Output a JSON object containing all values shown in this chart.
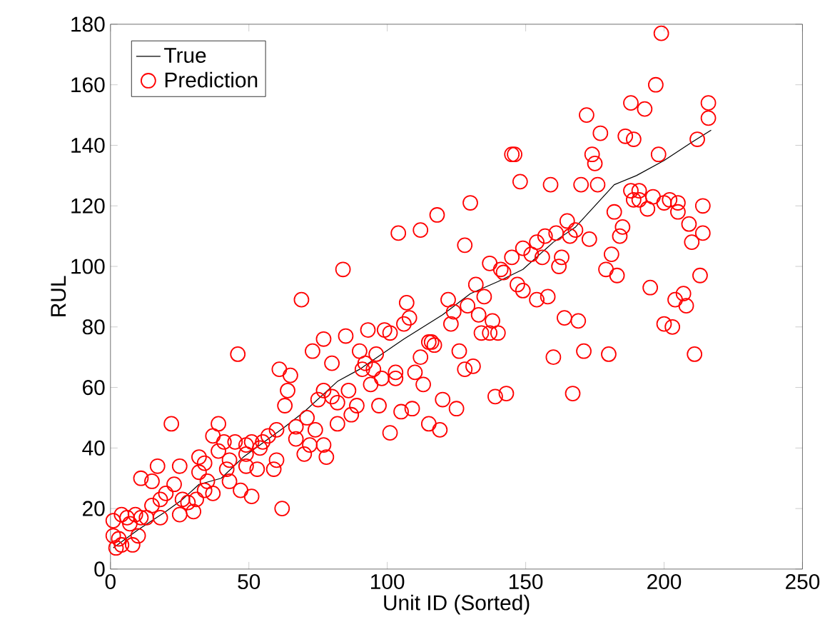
{
  "chart_data": {
    "type": "scatter",
    "xlabel": "Unit ID (Sorted)",
    "ylabel": "RUL",
    "xlim": [
      0,
      250
    ],
    "ylim": [
      0,
      180
    ],
    "xticks": [
      0,
      50,
      100,
      150,
      200,
      250
    ],
    "yticks": [
      0,
      20,
      40,
      60,
      80,
      100,
      120,
      140,
      160,
      180
    ],
    "legend": "top left",
    "series": [
      {
        "name": "True",
        "type": "line",
        "color": "#000000",
        "marker": "none",
        "line_style": "solid",
        "x": [
          1,
          10,
          20,
          26,
          32,
          40,
          48,
          63,
          70,
          82,
          90,
          106,
          120,
          130,
          140,
          149,
          160,
          168,
          182,
          190,
          200,
          210,
          217
        ],
        "values": [
          7,
          13,
          19,
          23,
          28,
          30,
          37,
          47,
          52,
          62,
          66,
          76,
          84,
          91,
          95,
          99,
          108,
          113,
          127,
          130,
          135,
          141,
          145
        ]
      },
      {
        "name": "Prediction",
        "color": "#ff0000",
        "marker": "circle",
        "x": [
          46,
          77,
          73,
          80,
          61,
          65,
          64,
          63,
          77,
          75,
          80,
          82,
          82,
          71,
          74,
          67,
          67,
          72,
          77,
          70,
          78,
          22,
          39,
          37,
          41,
          45,
          39,
          49,
          51,
          54,
          55,
          57,
          60,
          49,
          43,
          42,
          49,
          53,
          60,
          59,
          43,
          47,
          51,
          32,
          34,
          32,
          25,
          17,
          11,
          15,
          35,
          23,
          34,
          37,
          31,
          20,
          18,
          26,
          28,
          25,
          30,
          18,
          13,
          15,
          11,
          9,
          6,
          4,
          1,
          1,
          3,
          7,
          10,
          8,
          4,
          2,
          62,
          118,
          130,
          104,
          112,
          128,
          84,
          69,
          137,
          141,
          142,
          145,
          149,
          147,
          149,
          132,
          135,
          122,
          107,
          108,
          106,
          124,
          129,
          133,
          138,
          123,
          93,
          99,
          101,
          85,
          90,
          96,
          92,
          95,
          91,
          103,
          110,
          112,
          115,
          116,
          117,
          126,
          128,
          131,
          134,
          137,
          140,
          139,
          143,
          120,
          125,
          98,
          103,
          94,
          113,
          86,
          97,
          109,
          105,
          89,
          87,
          101,
          115,
          119,
          172,
          216,
          177,
          186,
          189,
          212,
          145,
          146,
          148,
          159,
          170,
          176,
          174,
          175,
          198,
          188,
          191,
          189,
          191,
          194,
          196,
          200,
          202,
          205,
          205,
          214,
          209,
          182,
          185,
          184,
          165,
          168,
          166,
          173,
          161,
          157,
          154,
          152,
          156,
          181,
          179,
          183,
          163,
          162,
          210,
          214,
          213,
          195,
          204,
          207,
          208,
          200,
          203,
          164,
          169,
          160,
          171,
          180,
          211,
          167,
          158,
          154,
          199,
          197,
          188,
          193,
          216
        ],
        "values": [
          71,
          76,
          72,
          68,
          66,
          64,
          59,
          54,
          59,
          56,
          57,
          55,
          48,
          50,
          46,
          47,
          43,
          41,
          41,
          38,
          37,
          48,
          48,
          44,
          42,
          42,
          39,
          41,
          42,
          40,
          42,
          44,
          46,
          38,
          36,
          33,
          34,
          33,
          36,
          33,
          29,
          26,
          24,
          37,
          35,
          32,
          34,
          34,
          30,
          29,
          29,
          28,
          26,
          25,
          23,
          25,
          23,
          23,
          22,
          18,
          19,
          17,
          17,
          21,
          17,
          18,
          17,
          18,
          16,
          11,
          10,
          15,
          11,
          8,
          8,
          7,
          20,
          117,
          121,
          111,
          112,
          107,
          99,
          89,
          101,
          99,
          98,
          103,
          106,
          94,
          92,
          94,
          90,
          89,
          88,
          83,
          81,
          85,
          87,
          84,
          82,
          81,
          79,
          79,
          78,
          77,
          72,
          71,
          68,
          66,
          66,
          65,
          65,
          70,
          75,
          75,
          74,
          72,
          66,
          67,
          78,
          78,
          78,
          57,
          58,
          56,
          53,
          63,
          63,
          61,
          61,
          59,
          54,
          53,
          52,
          54,
          51,
          45,
          48,
          46,
          150,
          149,
          144,
          143,
          142,
          142,
          137,
          137,
          128,
          127,
          127,
          127,
          137,
          134,
          137,
          125,
          125,
          122,
          122,
          119,
          123,
          121,
          122,
          121,
          118,
          120,
          114,
          118,
          113,
          110,
          115,
          112,
          110,
          109,
          111,
          110,
          108,
          104,
          103,
          104,
          99,
          97,
          103,
          100,
          108,
          111,
          97,
          93,
          89,
          91,
          87,
          81,
          80,
          83,
          82,
          70,
          72,
          71,
          71,
          58,
          90,
          89,
          177,
          160,
          154,
          152,
          154
        ]
      }
    ]
  }
}
